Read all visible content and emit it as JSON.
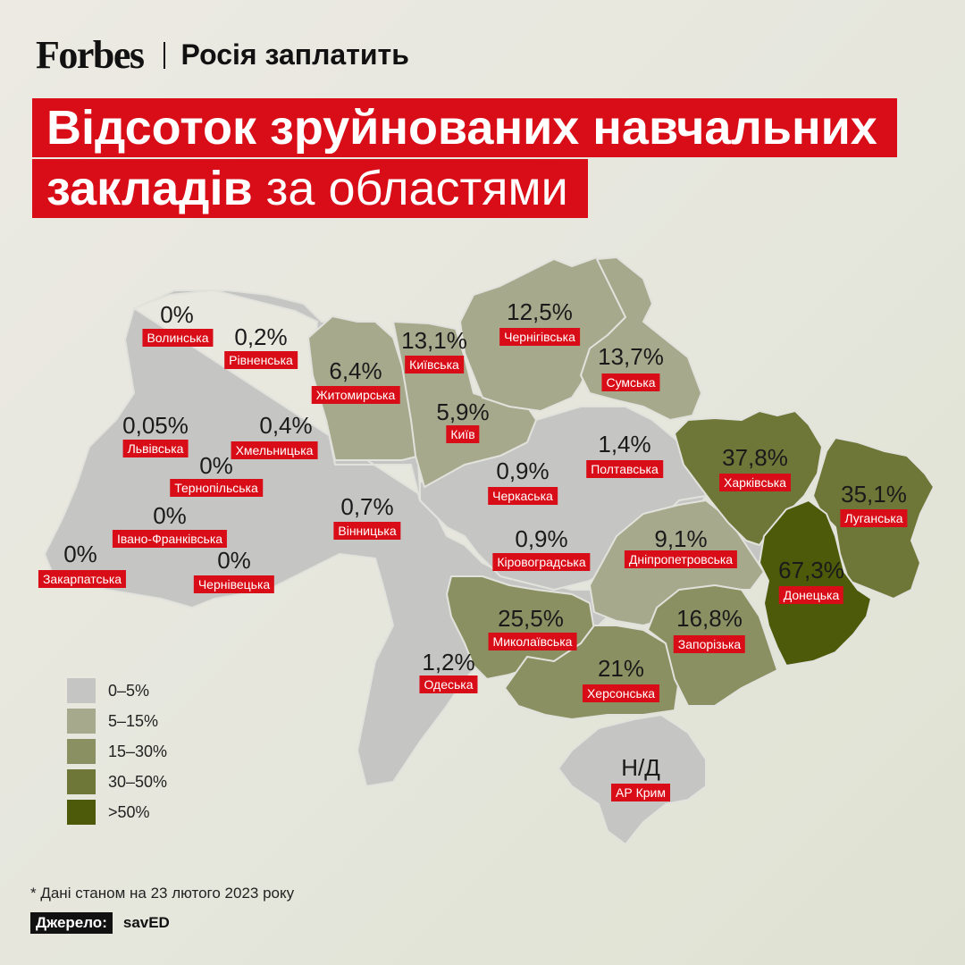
{
  "header": {
    "logo": "Forbes",
    "series": "Росія заплатить"
  },
  "title": {
    "line1": "Відсоток зруйнованих навчальних",
    "line2_bold": "закладів",
    "line2_rest": " за областями"
  },
  "legend": [
    {
      "label": "0–5%",
      "color": "#c5c5c4"
    },
    {
      "label": "5–15%",
      "color": "#a7a98d"
    },
    {
      "label": "15–30%",
      "color": "#8b9062"
    },
    {
      "label": "30–50%",
      "color": "#6e7738"
    },
    {
      "label": ">50%",
      "color": "#4c5a0a"
    }
  ],
  "regions": [
    {
      "id": "volynska",
      "name": "Волинська",
      "value": "0%",
      "bin": 0
    },
    {
      "id": "rivnenska",
      "name": "Рівненська",
      "value": "0,2%",
      "bin": 0
    },
    {
      "id": "zhytomyrska",
      "name": "Житомирська",
      "value": "6,4%",
      "bin": 1
    },
    {
      "id": "kyivska",
      "name": "Київська",
      "value": "13,1%",
      "bin": 1
    },
    {
      "id": "kyiv",
      "name": "Київ",
      "value": "5,9%",
      "bin": 1
    },
    {
      "id": "chernihivska",
      "name": "Чернігівська",
      "value": "12,5%",
      "bin": 1
    },
    {
      "id": "sumska",
      "name": "Сумська",
      "value": "13,7%",
      "bin": 1
    },
    {
      "id": "lvivska",
      "name": "Львівська",
      "value": "0,05%",
      "bin": 0
    },
    {
      "id": "khmelnytska",
      "name": "Хмельницька",
      "value": "0,4%",
      "bin": 0
    },
    {
      "id": "ternopilska",
      "name": "Тернопільська",
      "value": "0%",
      "bin": 0
    },
    {
      "id": "ivano-frankivska",
      "name": "Івано-Франківська",
      "value": "0%",
      "bin": 0
    },
    {
      "id": "zakarpatska",
      "name": "Закарпатська",
      "value": "0%",
      "bin": 0
    },
    {
      "id": "chernivetska",
      "name": "Чернівецька",
      "value": "0%",
      "bin": 0
    },
    {
      "id": "vinnytska",
      "name": "Вінницька",
      "value": "0,7%",
      "bin": 0
    },
    {
      "id": "cherkaska",
      "name": "Черкаська",
      "value": "0,9%",
      "bin": 0
    },
    {
      "id": "poltavska",
      "name": "Полтавська",
      "value": "1,4%",
      "bin": 0
    },
    {
      "id": "kharkivska",
      "name": "Харківська",
      "value": "37,8%",
      "bin": 3
    },
    {
      "id": "luhanska",
      "name": "Луганська",
      "value": "35,1%",
      "bin": 3
    },
    {
      "id": "kirovohradska",
      "name": "Кіровоградська",
      "value": "0,9%",
      "bin": 0
    },
    {
      "id": "dnipropetrovska",
      "name": "Дніпропетровська",
      "value": "9,1%",
      "bin": 1
    },
    {
      "id": "donetska",
      "name": "Донецька",
      "value": "67,3%",
      "bin": 4
    },
    {
      "id": "mykolaivska",
      "name": "Миколаївська",
      "value": "25,5%",
      "bin": 2
    },
    {
      "id": "zaporizka",
      "name": "Запорізька",
      "value": "16,8%",
      "bin": 2
    },
    {
      "id": "odeska",
      "name": "Одеська",
      "value": "1,2%",
      "bin": 0
    },
    {
      "id": "khersonska",
      "name": "Херсонська",
      "value": "21%",
      "bin": 2
    },
    {
      "id": "crimea",
      "name": "АР Крим",
      "value": "Н/Д",
      "bin": 0
    }
  ],
  "footnote": "* Дані станом на 23 лютого 2023 року",
  "source": {
    "label": "Джерело:",
    "value": "savED"
  }
}
